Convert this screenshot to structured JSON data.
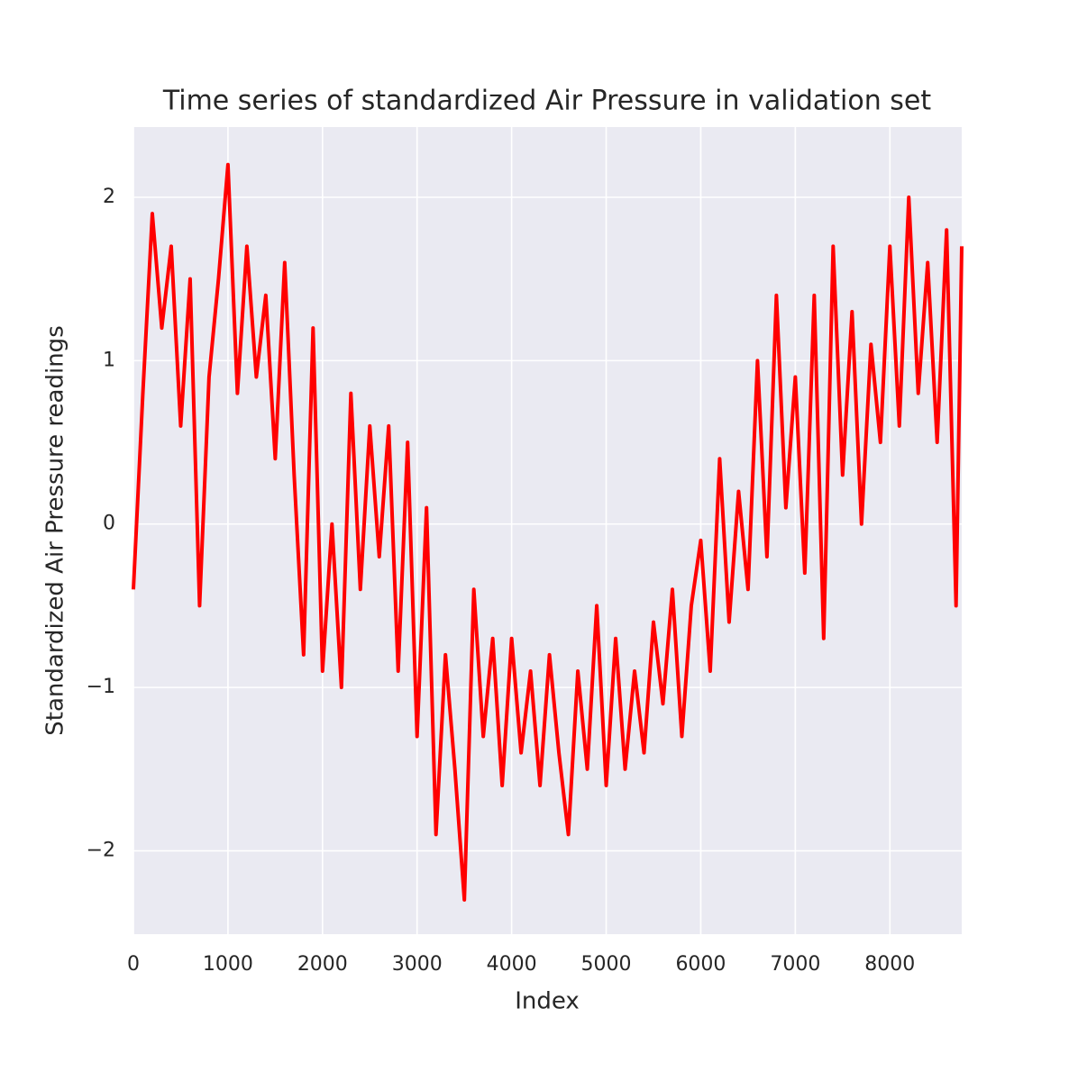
{
  "chart_data": {
    "type": "line",
    "title": "Time series of standardized Air Pressure in validation set",
    "xlabel": "Index",
    "ylabel": "Standardized Air Pressure readings",
    "x": [
      0,
      100,
      200,
      300,
      400,
      500,
      600,
      700,
      800,
      900,
      1000,
      1100,
      1200,
      1300,
      1400,
      1500,
      1600,
      1700,
      1800,
      1900,
      2000,
      2100,
      2200,
      2300,
      2400,
      2500,
      2600,
      2700,
      2800,
      2900,
      3000,
      3100,
      3200,
      3300,
      3400,
      3500,
      3600,
      3700,
      3800,
      3900,
      4000,
      4100,
      4200,
      4300,
      4400,
      4500,
      4600,
      4700,
      4800,
      4900,
      5000,
      5100,
      5200,
      5300,
      5400,
      5500,
      5600,
      5700,
      5800,
      5900,
      6000,
      6100,
      6200,
      6300,
      6400,
      6500,
      6600,
      6700,
      6800,
      6900,
      7000,
      7100,
      7200,
      7300,
      7400,
      7500,
      7600,
      7700,
      7800,
      7900,
      8000,
      8100,
      8200,
      8300,
      8400,
      8500,
      8600,
      8700,
      8760
    ],
    "series": [
      {
        "name": "Air Pressure",
        "color": "#ff0000",
        "values": [
          -0.4,
          0.8,
          1.9,
          1.2,
          1.7,
          0.6,
          1.5,
          -0.5,
          0.9,
          1.5,
          2.2,
          0.8,
          1.7,
          0.9,
          1.4,
          0.4,
          1.6,
          0.3,
          -0.8,
          1.2,
          -0.9,
          0.0,
          -1.0,
          0.8,
          -0.4,
          0.6,
          -0.2,
          0.6,
          -0.9,
          0.5,
          -1.3,
          0.1,
          -1.9,
          -0.8,
          -1.5,
          -2.3,
          -0.4,
          -1.3,
          -0.7,
          -1.6,
          -0.7,
          -1.4,
          -0.9,
          -1.6,
          -0.8,
          -1.4,
          -1.9,
          -0.9,
          -1.5,
          -0.5,
          -1.6,
          -0.7,
          -1.5,
          -0.9,
          -1.4,
          -0.6,
          -1.1,
          -0.4,
          -1.3,
          -0.5,
          -0.1,
          -0.9,
          0.4,
          -0.6,
          0.2,
          -0.4,
          1.0,
          -0.2,
          1.4,
          0.1,
          0.9,
          -0.3,
          1.4,
          -0.7,
          1.7,
          0.3,
          1.3,
          0.0,
          1.1,
          0.5,
          1.7,
          0.6,
          2.0,
          0.8,
          1.6,
          0.5,
          1.8,
          -0.5,
          1.7
        ]
      }
    ],
    "xlim": [
      0,
      8760
    ],
    "ylim": [
      -2.51,
      2.43
    ],
    "xticks": [
      0,
      1000,
      2000,
      3000,
      4000,
      5000,
      6000,
      7000,
      8000
    ],
    "yticks": [
      {
        "value": -2,
        "label": "−2"
      },
      {
        "value": -1,
        "label": "−1"
      },
      0,
      1,
      2
    ],
    "grid": true
  }
}
